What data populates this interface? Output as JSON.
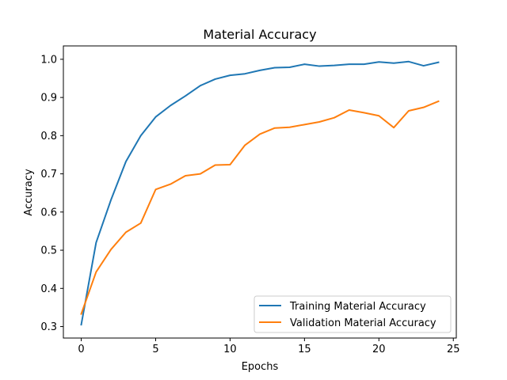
{
  "chart_data": {
    "type": "line",
    "title": "Material Accuracy",
    "xlabel": "Epochs",
    "ylabel": "Accuracy",
    "xlim": [
      -1.2,
      25.2
    ],
    "ylim": [
      0.27,
      1.035
    ],
    "xticks": [
      0,
      5,
      10,
      15,
      20,
      25
    ],
    "yticks": [
      0.3,
      0.4,
      0.5,
      0.6,
      0.7,
      0.8,
      0.9,
      1.0
    ],
    "xtick_labels": [
      "0",
      "5",
      "10",
      "15",
      "20",
      "25"
    ],
    "ytick_labels": [
      "0.3",
      "0.4",
      "0.5",
      "0.6",
      "0.7",
      "0.8",
      "0.9",
      "1.0"
    ],
    "grid": false,
    "legend_position": "lower right",
    "x": [
      0,
      1,
      2,
      3,
      4,
      5,
      6,
      7,
      8,
      9,
      10,
      11,
      12,
      13,
      14,
      15,
      16,
      17,
      18,
      19,
      20,
      21,
      22,
      23,
      24
    ],
    "series": [
      {
        "name": "Training Material Accuracy",
        "color": "#1f77b4",
        "values": [
          0.305,
          0.52,
          0.632,
          0.732,
          0.8,
          0.849,
          0.879,
          0.904,
          0.931,
          0.948,
          0.958,
          0.962,
          0.971,
          0.978,
          0.979,
          0.987,
          0.982,
          0.984,
          0.987,
          0.987,
          0.993,
          0.99,
          0.994,
          0.983,
          0.992
        ]
      },
      {
        "name": "Validation Material Accuracy",
        "color": "#ff7f0e",
        "values": [
          0.333,
          0.443,
          0.502,
          0.547,
          0.571,
          0.659,
          0.673,
          0.695,
          0.7,
          0.723,
          0.724,
          0.775,
          0.804,
          0.82,
          0.822,
          0.829,
          0.836,
          0.847,
          0.867,
          0.86,
          0.852,
          0.821,
          0.865,
          0.874,
          0.89
        ]
      }
    ]
  }
}
